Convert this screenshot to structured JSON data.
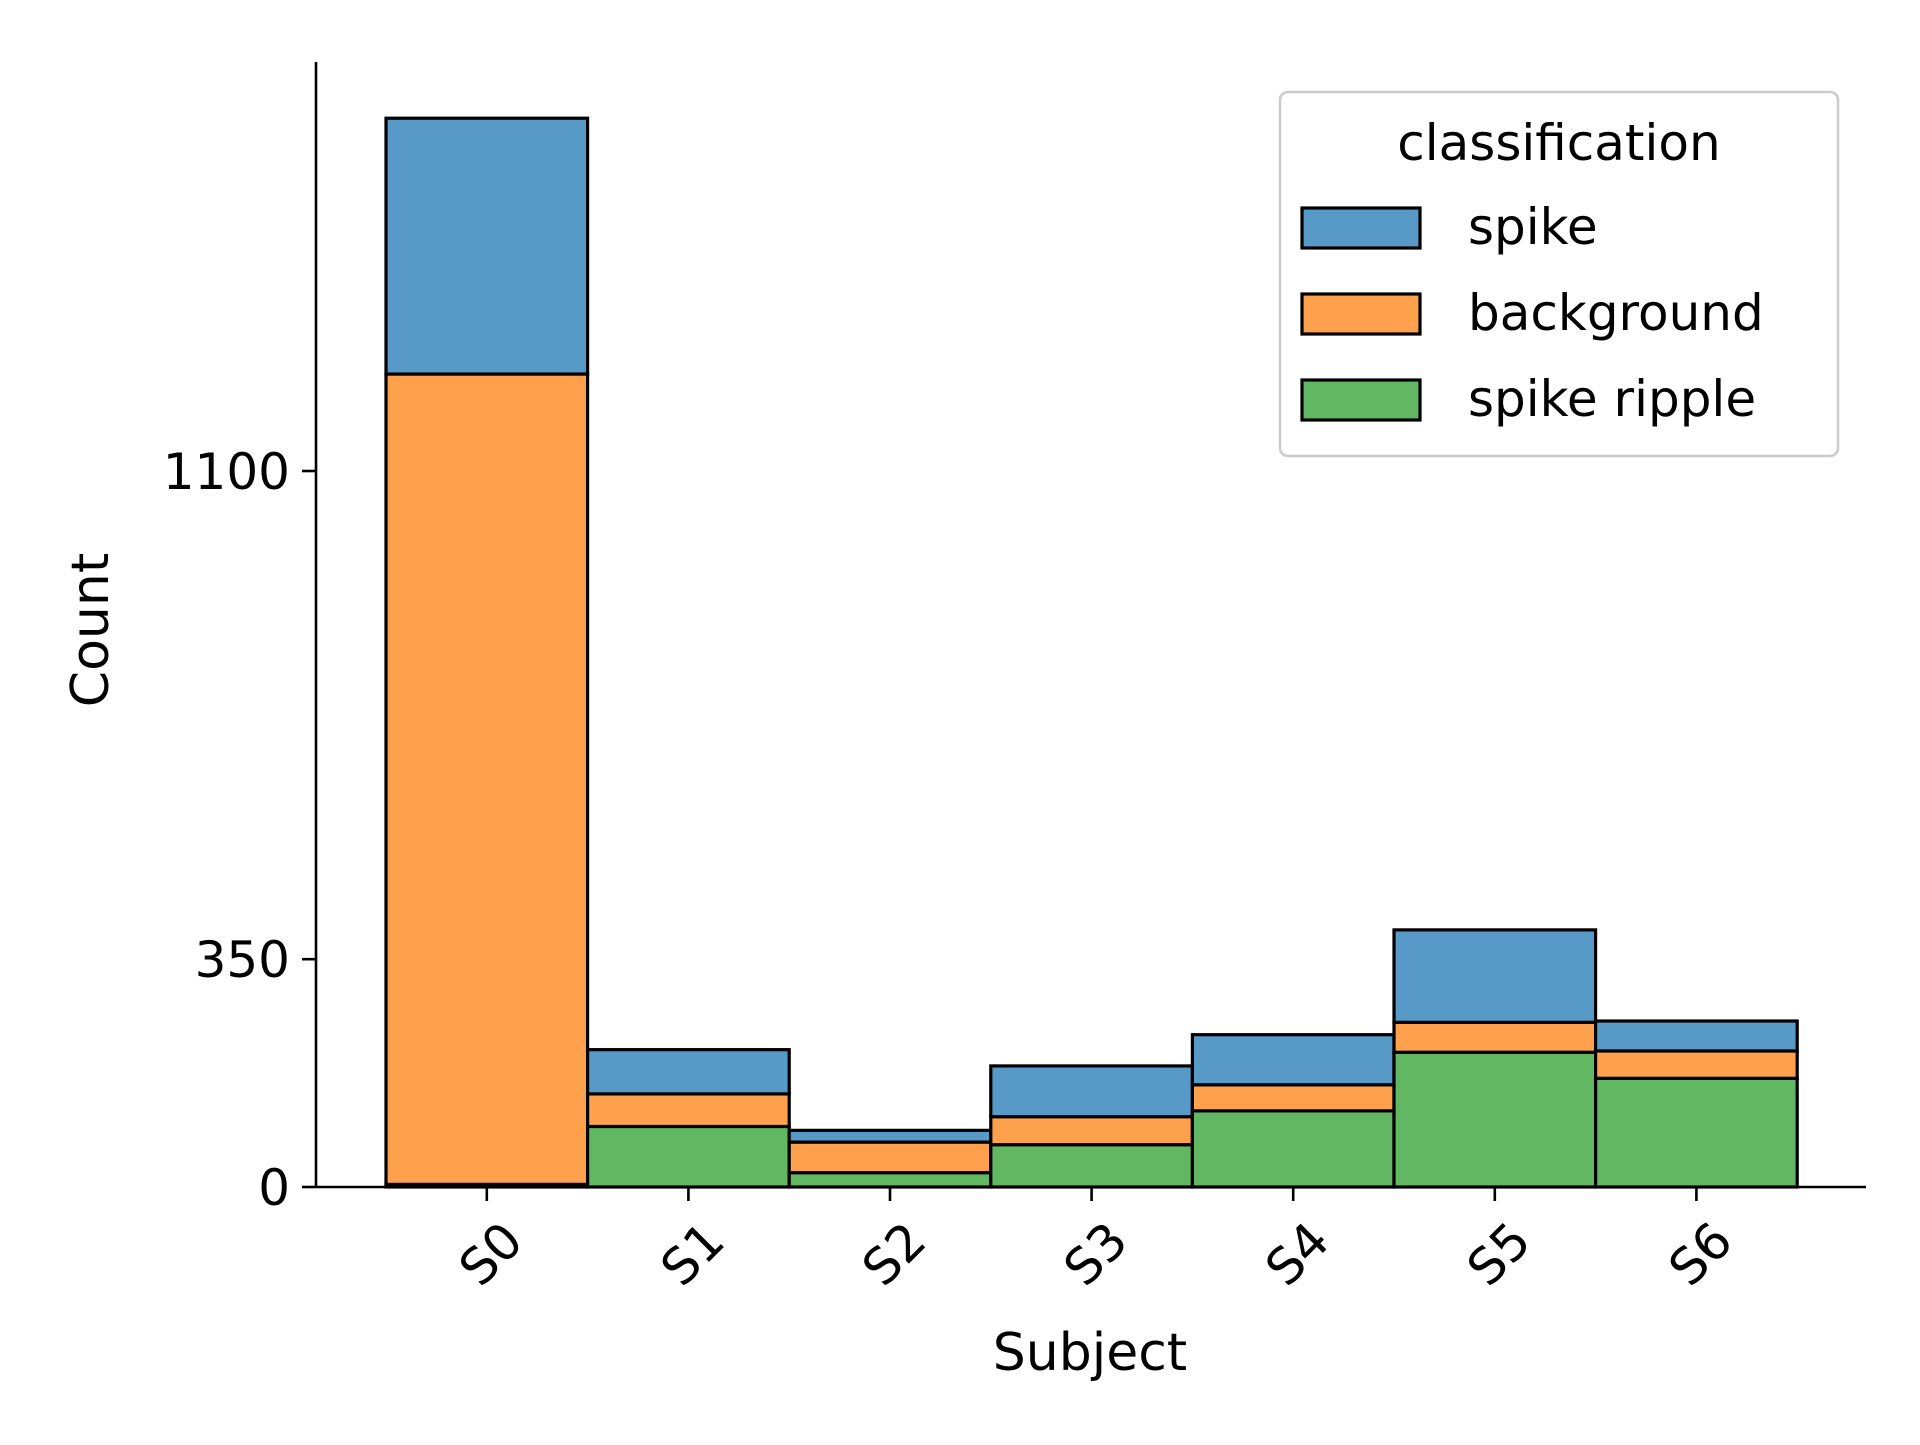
{
  "chart_data": {
    "type": "bar",
    "stacked": true,
    "xlabel": "Subject",
    "ylabel": "Count",
    "categories": [
      "S0",
      "S1",
      "S2",
      "S3",
      "S4",
      "S5",
      "S6"
    ],
    "yticks": [
      0,
      350,
      1100
    ],
    "ylim": [
      0,
      1700
    ],
    "series": [
      {
        "name": "spike ripple",
        "color": "#62b862",
        "values": [
          4,
          93,
          22,
          65,
          117,
          207,
          167
        ]
      },
      {
        "name": "background",
        "color": "#ffa04c",
        "values": [
          1245,
          50,
          47,
          43,
          40,
          46,
          42
        ]
      },
      {
        "name": "spike",
        "color": "#5799c7",
        "values": [
          393,
          68,
          18,
          78,
          77,
          142,
          46
        ]
      }
    ],
    "legend": {
      "title": "classification",
      "order": [
        "spike",
        "background",
        "spike ripple"
      ],
      "position": "top-right"
    },
    "grid": false
  }
}
